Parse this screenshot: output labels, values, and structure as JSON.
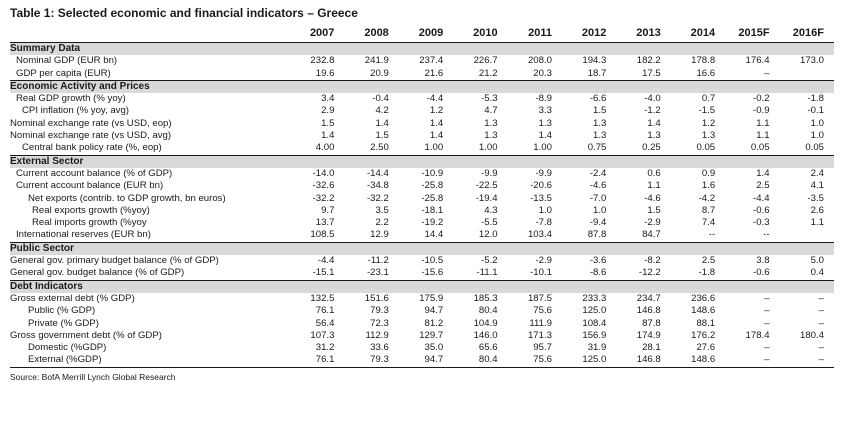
{
  "title": "Table 1: Selected economic and financial indicators – Greece",
  "columns": [
    "2007",
    "2008",
    "2009",
    "2010",
    "2011",
    "2012",
    "2013",
    "2014",
    "2015F",
    "2016F"
  ],
  "rows": [
    {
      "type": "section",
      "label": "Summary Data"
    },
    {
      "type": "row",
      "indent": 1,
      "label": "Nominal GDP (EUR bn)",
      "values": [
        "232.8",
        "241.9",
        "237.4",
        "226.7",
        "208.0",
        "194.3",
        "182.2",
        "178.8",
        "176.4",
        "173.0"
      ]
    },
    {
      "type": "row",
      "indent": 1,
      "label": "GDP per capita (EUR)",
      "values": [
        "19.6",
        "20.9",
        "21.6",
        "21.2",
        "20.3",
        "18.7",
        "17.5",
        "16.6",
        "–",
        ""
      ]
    },
    {
      "type": "section",
      "label": "Economic Activity and Prices"
    },
    {
      "type": "row",
      "indent": 1,
      "label": "Real GDP growth (% yoy)",
      "values": [
        "3.4",
        "-0.4",
        "-4.4",
        "-5.3",
        "-8.9",
        "-6.6",
        "-4.0",
        "0.7",
        "-0.2",
        "-1.8"
      ]
    },
    {
      "type": "row",
      "indent": 2,
      "label": "CPI inflation (% yoy, avg)",
      "values": [
        "2.9",
        "4.2",
        "1.2",
        "4.7",
        "3.3",
        "1.5",
        "-1.2",
        "-1.5",
        "-0.9",
        "-0.1"
      ]
    },
    {
      "type": "row",
      "indent": 0,
      "label": "Nominal exchange rate (vs USD, eop)",
      "values": [
        "1.5",
        "1.4",
        "1.4",
        "1.3",
        "1.3",
        "1.3",
        "1.4",
        "1.2",
        "1.1",
        "1.0"
      ]
    },
    {
      "type": "row",
      "indent": 0,
      "label": "Nominal exchange rate (vs USD, avg)",
      "values": [
        "1.4",
        "1.5",
        "1.4",
        "1.3",
        "1.4",
        "1.3",
        "1.3",
        "1.3",
        "1.1",
        "1.0"
      ]
    },
    {
      "type": "row",
      "indent": 2,
      "label": "Central bank policy rate (%, eop)",
      "values": [
        "4.00",
        "2.50",
        "1.00",
        "1.00",
        "1.00",
        "0.75",
        "0.25",
        "0.05",
        "0.05",
        "0.05"
      ]
    },
    {
      "type": "section",
      "label": "External Sector"
    },
    {
      "type": "row",
      "indent": 1,
      "label": "Current account balance (% of GDP)",
      "values": [
        "-14.0",
        "-14.4",
        "-10.9",
        "-9.9",
        "-9.9",
        "-2.4",
        "0.6",
        "0.9",
        "1.4",
        "2.4"
      ]
    },
    {
      "type": "row",
      "indent": 1,
      "label": "Current account balance (EUR bn)",
      "values": [
        "-32.6",
        "-34.8",
        "-25.8",
        "-22.5",
        "-20.6",
        "-4.6",
        "1.1",
        "1.6",
        "2.5",
        "4.1"
      ]
    },
    {
      "type": "row",
      "indent": 3,
      "label": "Net exports (contrib. to GDP growth, bn euros)",
      "values": [
        "-32.2",
        "-32.2",
        "-25.8",
        "-19.4",
        "-13.5",
        "-7.0",
        "-4.6",
        "-4.2",
        "-4.4",
        "-3.5"
      ]
    },
    {
      "type": "row",
      "indent": 4,
      "label": "Real exports growth (%yoy)",
      "values": [
        "9.7",
        "3.5",
        "-18.1",
        "4.3",
        "1.0",
        "1.0",
        "1.5",
        "8.7",
        "-0.6",
        "2.6"
      ]
    },
    {
      "type": "row",
      "indent": 4,
      "label": "Real imports growth (%yoy",
      "values": [
        "13.7",
        "2.2",
        "-19.2",
        "-5.5",
        "-7.8",
        "-9.4",
        "-2.9",
        "7.4",
        "-0.3",
        "1.1"
      ]
    },
    {
      "type": "row",
      "indent": 1,
      "label": "International reserves (EUR bn)",
      "values": [
        "108.5",
        "12.9",
        "14.4",
        "12.0",
        "103.4",
        "87.8",
        "84.7",
        "--",
        "--",
        ""
      ]
    },
    {
      "type": "section",
      "label": "Public Sector"
    },
    {
      "type": "row",
      "indent": 0,
      "label": "General gov. primary budget balance (% of GDP)",
      "values": [
        "-4.4",
        "-11.2",
        "-10.5",
        "-5.2",
        "-2.9",
        "-3.6",
        "-8.2",
        "2.5",
        "3.8",
        "5.0"
      ]
    },
    {
      "type": "row",
      "indent": 0,
      "label": "General gov. budget balance (% of GDP)",
      "values": [
        "-15.1",
        "-23.1",
        "-15.6",
        "-11.1",
        "-10.1",
        "-8.6",
        "-12.2",
        "-1.8",
        "-0.6",
        "0.4"
      ]
    },
    {
      "type": "section",
      "label": "Debt Indicators"
    },
    {
      "type": "row",
      "indent": 0,
      "label": "Gross external debt (% GDP)",
      "values": [
        "132.5",
        "151.6",
        "175.9",
        "185.3",
        "187.5",
        "233.3",
        "234.7",
        "236.6",
        "–",
        "–"
      ]
    },
    {
      "type": "row",
      "indent": 3,
      "label": "Public (% GDP)",
      "values": [
        "76.1",
        "79.3",
        "94.7",
        "80.4",
        "75.6",
        "125.0",
        "146.8",
        "148.6",
        "–",
        "–"
      ]
    },
    {
      "type": "row",
      "indent": 3,
      "label": "Private (% GDP)",
      "values": [
        "56.4",
        "72.3",
        "81.2",
        "104.9",
        "111.9",
        "108.4",
        "87.8",
        "88.1",
        "–",
        "–"
      ]
    },
    {
      "type": "row",
      "indent": 0,
      "label": "Gross government debt (% of GDP)",
      "values": [
        "107.3",
        "112.9",
        "129.7",
        "146.0",
        "171.3",
        "156.9",
        "174.9",
        "176.2",
        "178.4",
        "180.4"
      ]
    },
    {
      "type": "row",
      "indent": 3,
      "label": "Domestic (%GDP)",
      "values": [
        "31.2",
        "33.6",
        "35.0",
        "65.6",
        "95.7",
        "31.9",
        "28.1",
        "27.6",
        "–",
        "–"
      ]
    },
    {
      "type": "row",
      "indent": 3,
      "label": "External (%GDP)",
      "values": [
        "76.1",
        "79.3",
        "94.7",
        "80.4",
        "75.6",
        "125.0",
        "146.8",
        "148.6",
        "–",
        "–"
      ]
    }
  ],
  "source": "Source: BofA Merrill Lynch Global Research"
}
